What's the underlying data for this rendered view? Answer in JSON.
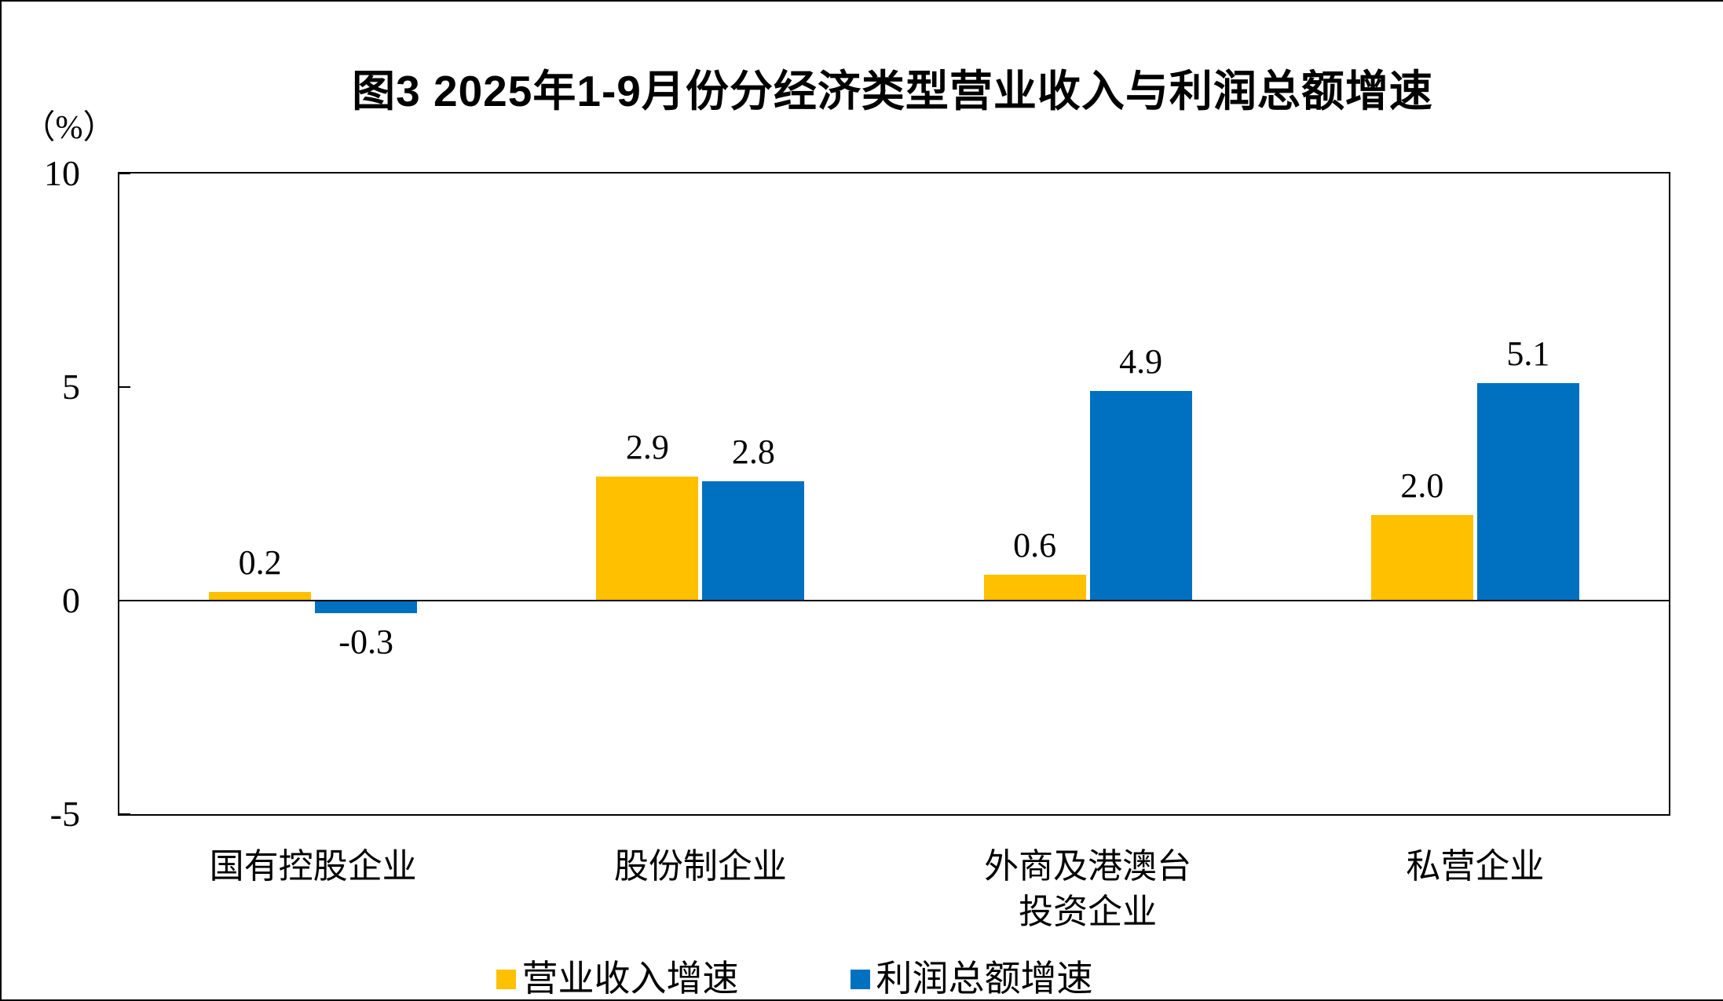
{
  "chart_data": {
    "type": "bar",
    "title": "图3  2025年1-9月份分经济类型营业收入与利润总额增速",
    "categories": [
      "国有控股企业",
      "股份制企业",
      "外商及港澳台\n投资企业",
      "私营企业"
    ],
    "series": [
      {
        "name": "营业收入增速",
        "color": "#FFC000",
        "values": [
          0.2,
          2.9,
          0.6,
          2.0
        ]
      },
      {
        "name": "利润总额增速",
        "color": "#0070C0",
        "values": [
          -0.3,
          2.8,
          4.9,
          5.1
        ]
      }
    ],
    "ylabel": "（%）",
    "ylim": [
      -5,
      10
    ],
    "yticks": [
      10,
      5,
      0,
      -5
    ],
    "value_label_decimals": 1,
    "grid": false,
    "legend_position": "bottom",
    "axis_color": "#000000",
    "background_color": "#ffffff"
  }
}
